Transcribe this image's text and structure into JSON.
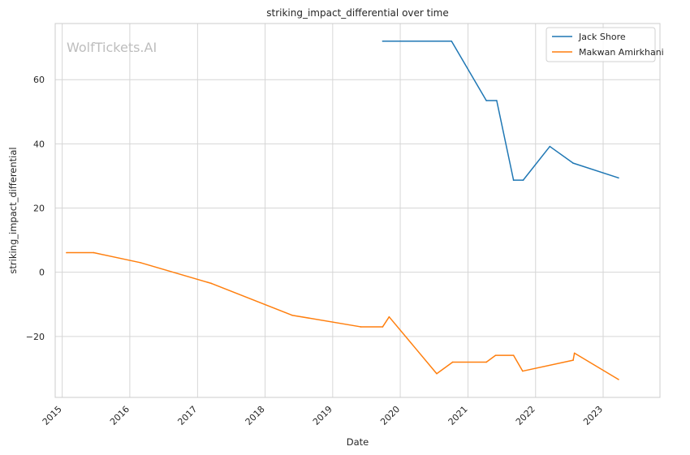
{
  "chart_data": {
    "type": "line",
    "title": "striking_impact_differential over time",
    "xlabel": "Date",
    "ylabel": "striking_impact_differential",
    "watermark": "WolfTickets.AI",
    "x_ticks": [
      "2015",
      "2016",
      "2017",
      "2018",
      "2019",
      "2020",
      "2021",
      "2022",
      "2023"
    ],
    "y_ticks": [
      "−20",
      "0",
      "20",
      "40",
      "60"
    ],
    "xlim": [
      "2014-11-24",
      "2023-11-04"
    ],
    "ylim": [
      -39,
      77.5
    ],
    "grid": true,
    "legend_position": "top-right",
    "colors": {
      "Jack Shore": "#1f77b4",
      "Makwan Amirkhani": "#ff7f0e"
    },
    "series": [
      {
        "name": "Jack Shore",
        "color": "#1f77b4",
        "points": [
          [
            "2019-09-28",
            72
          ],
          [
            "2020-10-04",
            72
          ],
          [
            "2021-04-10",
            53.5
          ],
          [
            "2021-06-05",
            53.5
          ],
          [
            "2021-09-04",
            28.7
          ],
          [
            "2021-10-26",
            28.7
          ],
          [
            "2022-03-19",
            39.2
          ],
          [
            "2022-07-23",
            34
          ],
          [
            "2023-03-25",
            29.4
          ]
        ]
      },
      {
        "name": "Makwan Amirkhani",
        "color": "#ff7f0e",
        "points": [
          [
            "2015-01-24",
            6.1
          ],
          [
            "2015-06-20",
            6.1
          ],
          [
            "2016-02-27",
            3
          ],
          [
            "2017-03-18",
            -3.5
          ],
          [
            "2018-05-27",
            -13.4
          ],
          [
            "2019-06-01",
            -17
          ],
          [
            "2019-09-28",
            -17
          ],
          [
            "2019-11-02",
            -13.9
          ],
          [
            "2020-07-16",
            -31.6
          ],
          [
            "2020-10-10",
            -28
          ],
          [
            "2021-04-10",
            -28
          ],
          [
            "2021-05-30",
            -25.9
          ],
          [
            "2021-09-04",
            -25.9
          ],
          [
            "2021-10-23",
            -30.8
          ],
          [
            "2022-07-23",
            -27.4
          ],
          [
            "2022-07-30",
            -25.2
          ],
          [
            "2023-03-25",
            -33.4
          ]
        ]
      }
    ]
  }
}
